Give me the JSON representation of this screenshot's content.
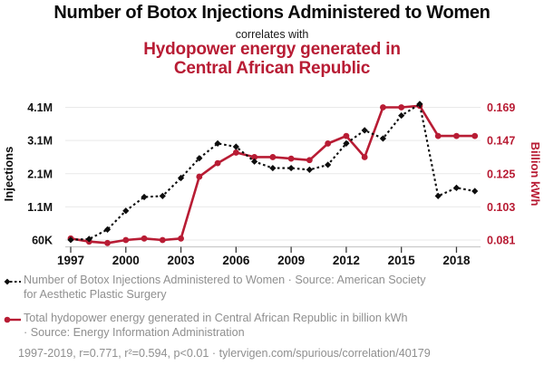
{
  "header": {
    "title": "Number of Botox Injections Administered to Women",
    "connector": "correlates with",
    "secondary_title": "Hydopower energy generated in\nCentral African Republic"
  },
  "colors": {
    "accent_red": "#b81c34",
    "series_black": "#0d0d0d",
    "legend_gray": "#8f8f8f",
    "gridline": "#e9e9e9",
    "axis_line": "#c9c9c9",
    "tick_mark": "#3a3a3a"
  },
  "legend": {
    "entries": [
      {
        "marker": "black-diamond-dashed",
        "text": "Number of Botox Injections Administered to Women · Source: American Society\nfor Aesthetic Plastic Surgery"
      },
      {
        "marker": "red-circle-solid",
        "text": "Total hydopower energy generated in Central African Republic in billion kWh\n· Source: Energy Information Administration"
      }
    ]
  },
  "footer": {
    "text": "1997-2019, r=0.771, r²=0.594, p<0.01 · tylervigen.com/spurious/correlation/40179"
  },
  "chart_data": {
    "type": "line",
    "x": [
      1997,
      1998,
      1999,
      2000,
      2001,
      2002,
      2003,
      2004,
      2005,
      2006,
      2007,
      2008,
      2009,
      2010,
      2011,
      2012,
      2013,
      2014,
      2015,
      2016,
      2017,
      2018,
      2019
    ],
    "x_tick_labels": [
      "1997",
      "2000",
      "2003",
      "2006",
      "2009",
      "2012",
      "2015",
      "2018"
    ],
    "left_axis": {
      "label": "Injections",
      "tick_labels": [
        "60K",
        "1.1M",
        "2.1M",
        "3.1M",
        "4.1M"
      ],
      "tick_values_millions": [
        0.06,
        1.1,
        2.1,
        3.1,
        4.1
      ]
    },
    "right_axis": {
      "label": "Billion kWh",
      "tick_labels": [
        "0.081",
        "0.103",
        "0.125",
        "0.147",
        "0.169"
      ],
      "tick_values": [
        0.081,
        0.103,
        0.125,
        0.147,
        0.169
      ]
    },
    "grid": true,
    "legend_position": "below",
    "series": [
      {
        "name": "Number of Botox Injections Administered to Women",
        "axis": "left",
        "unit": "millions of injections",
        "style": "black dashed line with diamond markers",
        "values": [
          0.065,
          0.09,
          0.38,
          0.95,
          1.37,
          1.4,
          1.95,
          2.55,
          3.0,
          2.9,
          2.45,
          2.25,
          2.25,
          2.2,
          2.35,
          3.0,
          3.4,
          3.15,
          3.85,
          4.2,
          1.4,
          1.65,
          1.55
        ]
      },
      {
        "name": "Total hydopower energy generated in Central African Republic",
        "axis": "right",
        "unit": "billion kWh",
        "style": "red solid line with circle markers",
        "values": [
          0.082,
          0.08,
          0.079,
          0.081,
          0.082,
          0.081,
          0.082,
          0.123,
          0.132,
          0.139,
          0.136,
          0.136,
          0.135,
          0.134,
          0.145,
          0.15,
          0.136,
          0.169,
          0.169,
          0.17,
          0.15,
          0.15,
          0.15
        ]
      }
    ]
  }
}
